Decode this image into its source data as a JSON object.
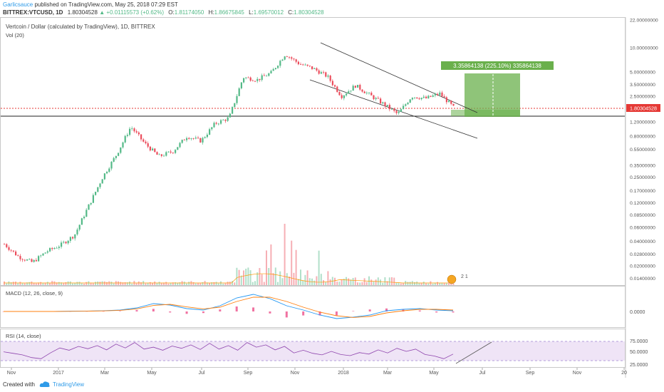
{
  "header": {
    "author": "Garlicsauce",
    "published_text": "published on TradingView.com, May 25, 2018 07:29 EST",
    "symbol": "BITTREX:VTCUSD, 1D",
    "last_price": "1.80304528",
    "change_icon": "up-triangle-icon",
    "change": "+0.01115573 (+0.62%)",
    "o_label": "O:",
    "o_value": "1.81174050",
    "h_label": "H:",
    "h_value": "1.86675845",
    "l_label": "L:",
    "l_value": "1.69570012",
    "c_label": "C:",
    "c_value": "1.80304528"
  },
  "colors": {
    "up": "#53b987",
    "down": "#eb4d5c",
    "link": "#2f9be8",
    "rsi_line": "#8e44ad",
    "rsi_band": "#efe4f6",
    "macd_line": "#2196f3",
    "signal_line": "#ff7f0e",
    "hist": "#ec4f8a",
    "target_fill": "#6ab04c",
    "price_label": "#e53935"
  },
  "footer": {
    "created_with": "Created with",
    "brand": "TradingView",
    "logo_icon": "tradingview-cloud-icon"
  },
  "chart_data": [
    {
      "type": "line",
      "title": "Vertcoin / Dollar (calculated by TradingView), 1D, BITTREX",
      "subtitle": "Vol (20)",
      "xlabel": "",
      "ylabel": "",
      "x_ticks": [
        "Nov",
        "2017",
        "Mar",
        "May",
        "Jul",
        "Sep",
        "Nov",
        "2018",
        "Mar",
        "May",
        "Jul",
        "Sep",
        "Nov",
        "20"
      ],
      "y_scale": "log",
      "y_ticks": [
        "22.00000000",
        "10.00000000",
        "5.00000000",
        "3.50000000",
        "2.50000000",
        "1.80304528",
        "1.20000000",
        "0.80000000",
        "0.55000000",
        "0.35000000",
        "0.25000000",
        "0.17000000",
        "0.12000000",
        "0.08500000",
        "0.06000000",
        "0.04000000",
        "0.02800000",
        "0.02000000",
        "0.01400000"
      ],
      "ylim": [
        0.0125,
        22
      ],
      "last_price_label": "1.80304528",
      "annotation": "3.35864138 (225.10%) 335864138",
      "marker_label": "2 1",
      "series": [
        {
          "values": [
            [
              "Nov",
              0.037
            ],
            [
              "Dec",
              0.026
            ],
            [
              "2017",
              0.022
            ],
            [
              "Feb",
              0.03
            ],
            [
              "Mar",
              0.036
            ],
            [
              "Apr",
              0.048
            ],
            [
              "Apr-end",
              0.11
            ],
            [
              "May",
              0.25
            ],
            [
              "May-end",
              0.48
            ],
            [
              "Jun",
              1.05
            ],
            [
              "Jun-end",
              0.65
            ],
            [
              "Jul",
              0.45
            ],
            [
              "Jul-end",
              0.52
            ],
            [
              "Aug",
              0.8
            ],
            [
              "Aug-end",
              0.7
            ],
            [
              "Sep",
              1.15
            ],
            [
              "Sep-end",
              1.35
            ],
            [
              "Oct",
              4.3
            ],
            [
              "Oct-end",
              4.0
            ],
            [
              "Nov",
              4.9
            ],
            [
              "Nov-end",
              8.3
            ],
            [
              "Dec",
              6.3
            ],
            [
              "Dec-end",
              5.5
            ],
            [
              "2018",
              4.4
            ],
            [
              "Jan-end",
              2.5
            ],
            [
              "Feb",
              3.4
            ],
            [
              "Feb-end",
              2.6
            ],
            [
              "Mar",
              2.0
            ],
            [
              "Mar-end",
              1.5
            ],
            [
              "Apr",
              2.5
            ],
            [
              "Apr-end",
              2.35
            ],
            [
              "May",
              2.7
            ],
            [
              "May-25",
              1.8
            ]
          ]
        }
      ]
    },
    {
      "type": "line",
      "title": "MACD (12, 26, close, 9)",
      "y_ticks": [
        "0.0000"
      ],
      "series": [
        {
          "values": [
            0,
            0,
            0,
            0,
            0.02,
            0.03,
            0.05,
            0.1,
            0.25,
            0.55,
            0.45,
            0.2,
            0.1,
            0.4,
            0.95,
            1.2,
            0.9,
            0.4,
            0.1,
            -0.25,
            -0.5,
            -0.4,
            -0.25,
            0.05,
            0.15,
            0.2,
            0.1,
            0.05
          ]
        },
        {
          "values": [
            0,
            0,
            0,
            0,
            0.01,
            0.02,
            0.04,
            0.08,
            0.18,
            0.42,
            0.5,
            0.32,
            0.18,
            0.3,
            0.7,
            1.0,
            1.0,
            0.7,
            0.3,
            -0.05,
            -0.3,
            -0.42,
            -0.35,
            -0.1,
            0.05,
            0.15,
            0.15,
            0.1
          ]
        }
      ]
    },
    {
      "type": "line",
      "title": "RSI (14, close)",
      "y_ticks": [
        "75.0000",
        "50.0000",
        "25.0000"
      ],
      "ylim": [
        20,
        80
      ],
      "series": [
        {
          "values": [
            48,
            44,
            40,
            33,
            30,
            45,
            58,
            52,
            62,
            56,
            64,
            53,
            68,
            58,
            72,
            55,
            60,
            52,
            63,
            57,
            66,
            54,
            70,
            55,
            64,
            52,
            72,
            60,
            66,
            53,
            62,
            45,
            52,
            44,
            40,
            49,
            41,
            38,
            46,
            42,
            53,
            45,
            57,
            49,
            55,
            41,
            37,
            30,
            42
          ]
        }
      ]
    }
  ]
}
